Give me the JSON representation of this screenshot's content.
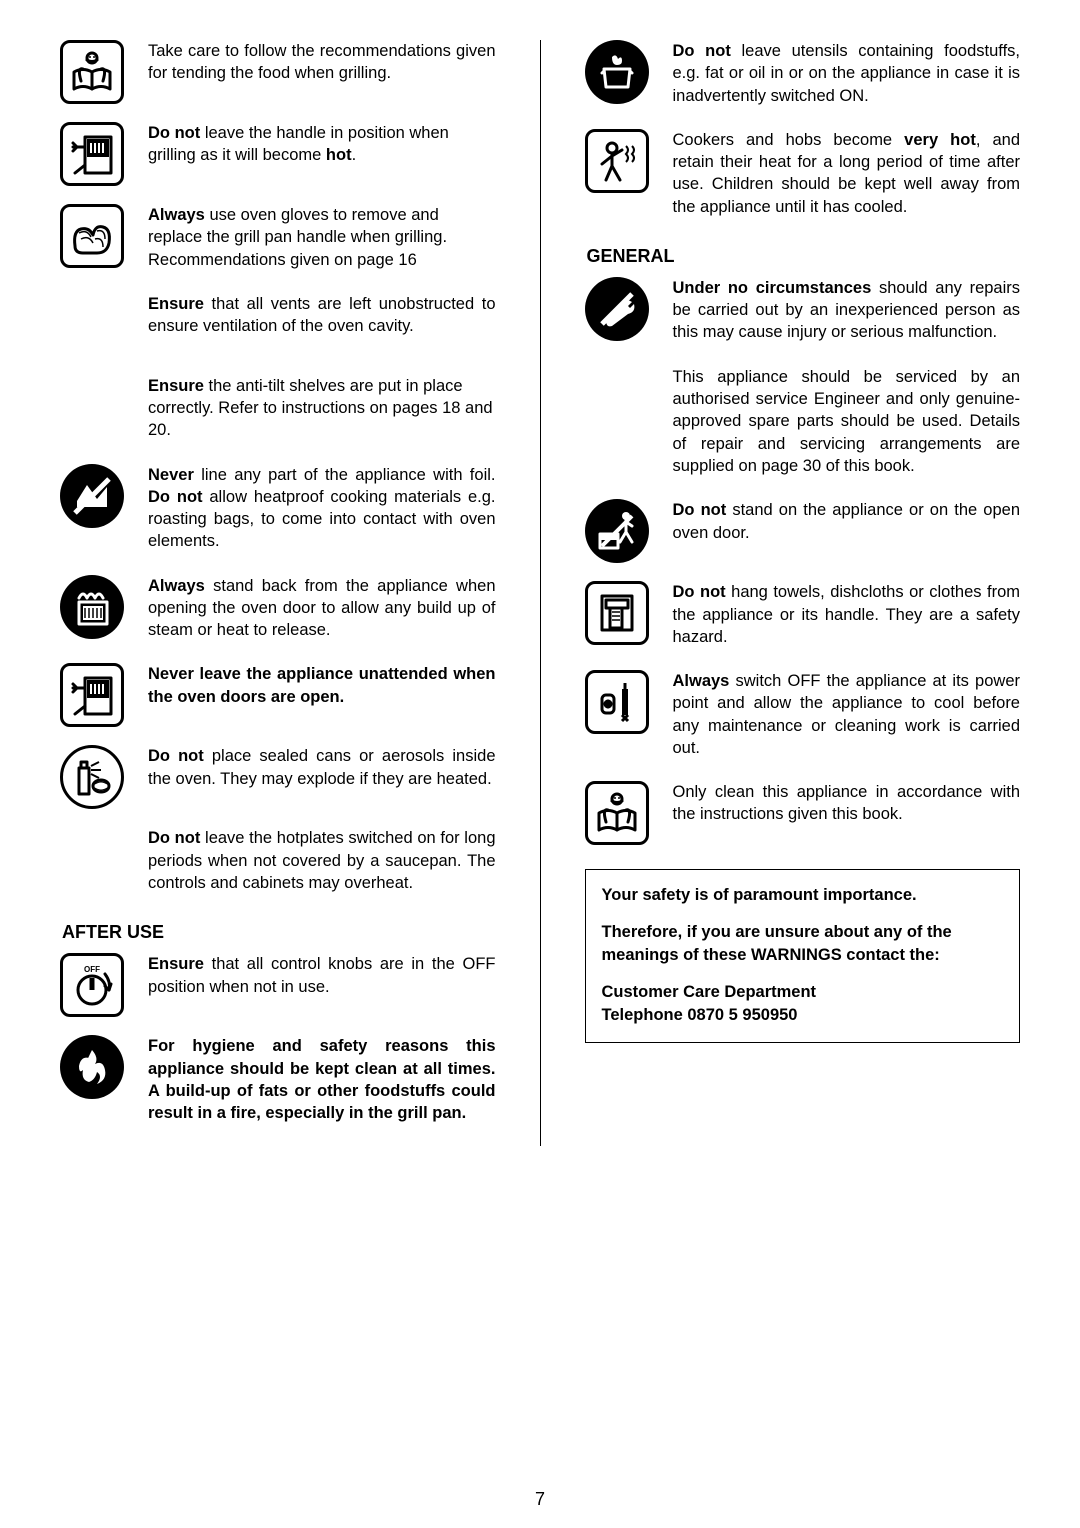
{
  "page_number": "7",
  "left": {
    "items": [
      {
        "icon": "manual-icon",
        "text": "Take care to follow the recommendations given for tending the food when grilling.",
        "justify": true
      },
      {
        "icon": "grill-open-icon",
        "text": "<b>Do not</b> leave the handle in position when grilling as it will become <b>hot</b>."
      },
      {
        "icon": "oven-gloves-icon",
        "text": "<b>Always</b> use oven gloves to remove and replace the grill pan handle when grilling.<br>Recommendations given on page 16"
      },
      {
        "icon": "",
        "text": "<b>Ensure</b> that all vents are left unobstructed to ensure ventilation of the oven cavity.",
        "justify": true
      },
      {
        "icon": "",
        "text": "<b>Ensure</b> the anti-tilt shelves are put in place correctly. Refer to instructions on pages 18 and 20."
      },
      {
        "icon": "no-foil-icon",
        "text": "<b>Never</b> line any part of the appliance with foil. <b>Do not</b> allow heatproof cooking materials e.g. roasting bags, to come into contact with oven elements.",
        "justify": true
      },
      {
        "icon": "steam-icon",
        "text": "<b>Always</b> stand back from the appliance when opening the oven door to allow any build up of steam or heat to release.",
        "justify": true
      },
      {
        "icon": "oven-open-icon",
        "text": "<b>Never leave the appliance unattended when the oven doors are open.</b>",
        "justify": true
      },
      {
        "icon": "aerosol-icon",
        "text": "<b>Do not</b> place sealed cans or aerosols inside the oven.  They may explode if they are heated.",
        "justify": true
      },
      {
        "icon": "",
        "text": "<b>Do not</b> leave the hotplates switched on for long periods when not covered by a saucepan. The controls and cabinets may overheat.",
        "justify": true
      }
    ],
    "after_use_heading": "AFTER USE",
    "after_use_items": [
      {
        "icon": "off-knob-icon",
        "text": "<b>Ensure</b> that all control knobs are in the OFF position when not in use.",
        "justify": true
      },
      {
        "icon": "fire-icon",
        "text": "<b>For hygiene and safety reasons this appliance should be kept clean at all times.  A build-up of fats or other foodstuffs could result in a fire, especially in the grill pan.</b>",
        "justify": true
      }
    ]
  },
  "right": {
    "items_top": [
      {
        "icon": "pot-flame-icon",
        "text": "<b>Do not</b> leave utensils containing foodstuffs, e.g. fat or oil in or on the appliance in case it is inadvertently switched ON.",
        "justify": true
      },
      {
        "icon": "child-hot-icon",
        "text": "Cookers and hobs become <b>very hot</b>, and retain their heat for a long period of time after use.  Children should be kept well away from the appliance until it has cooled.",
        "justify": true
      }
    ],
    "general_heading": "GENERAL",
    "general_items": [
      {
        "icon": "no-repair-icon",
        "text": "<b>Under no circumstances</b> should any repairs be carried out by an inexperienced person as this may cause injury or serious malfunction.<br><br>This appliance should be serviced by an authorised service Engineer and only genuine-approved spare parts should be used. Details of repair and servicing arrangements are supplied on page 30 of this book.",
        "justify": true
      },
      {
        "icon": "no-stand-icon",
        "text": "<b>Do not</b> stand on the appliance or on the open oven door.",
        "justify": true
      },
      {
        "icon": "no-towel-icon",
        "text": "<b>Do not</b> hang towels, dishcloths or clothes from the appliance or its handle.  They are a safety hazard.",
        "justify": true
      },
      {
        "icon": "plug-off-icon",
        "text": "<b>Always</b> switch OFF the appliance at its power point and allow the appliance to cool before any maintenance or cleaning work is carried out.",
        "justify": true
      },
      {
        "icon": "manual-icon",
        "text": "Only clean this appliance in accordance with the instructions given this book.",
        "justify": true
      }
    ],
    "infobox": {
      "l1": "Your safety is of paramount importance.",
      "l2": "Therefore, if you are unsure about any of the meanings of these WARNINGS contact the:",
      "l3": "Customer Care Department",
      "l4": "Telephone 0870 5 950950"
    }
  }
}
